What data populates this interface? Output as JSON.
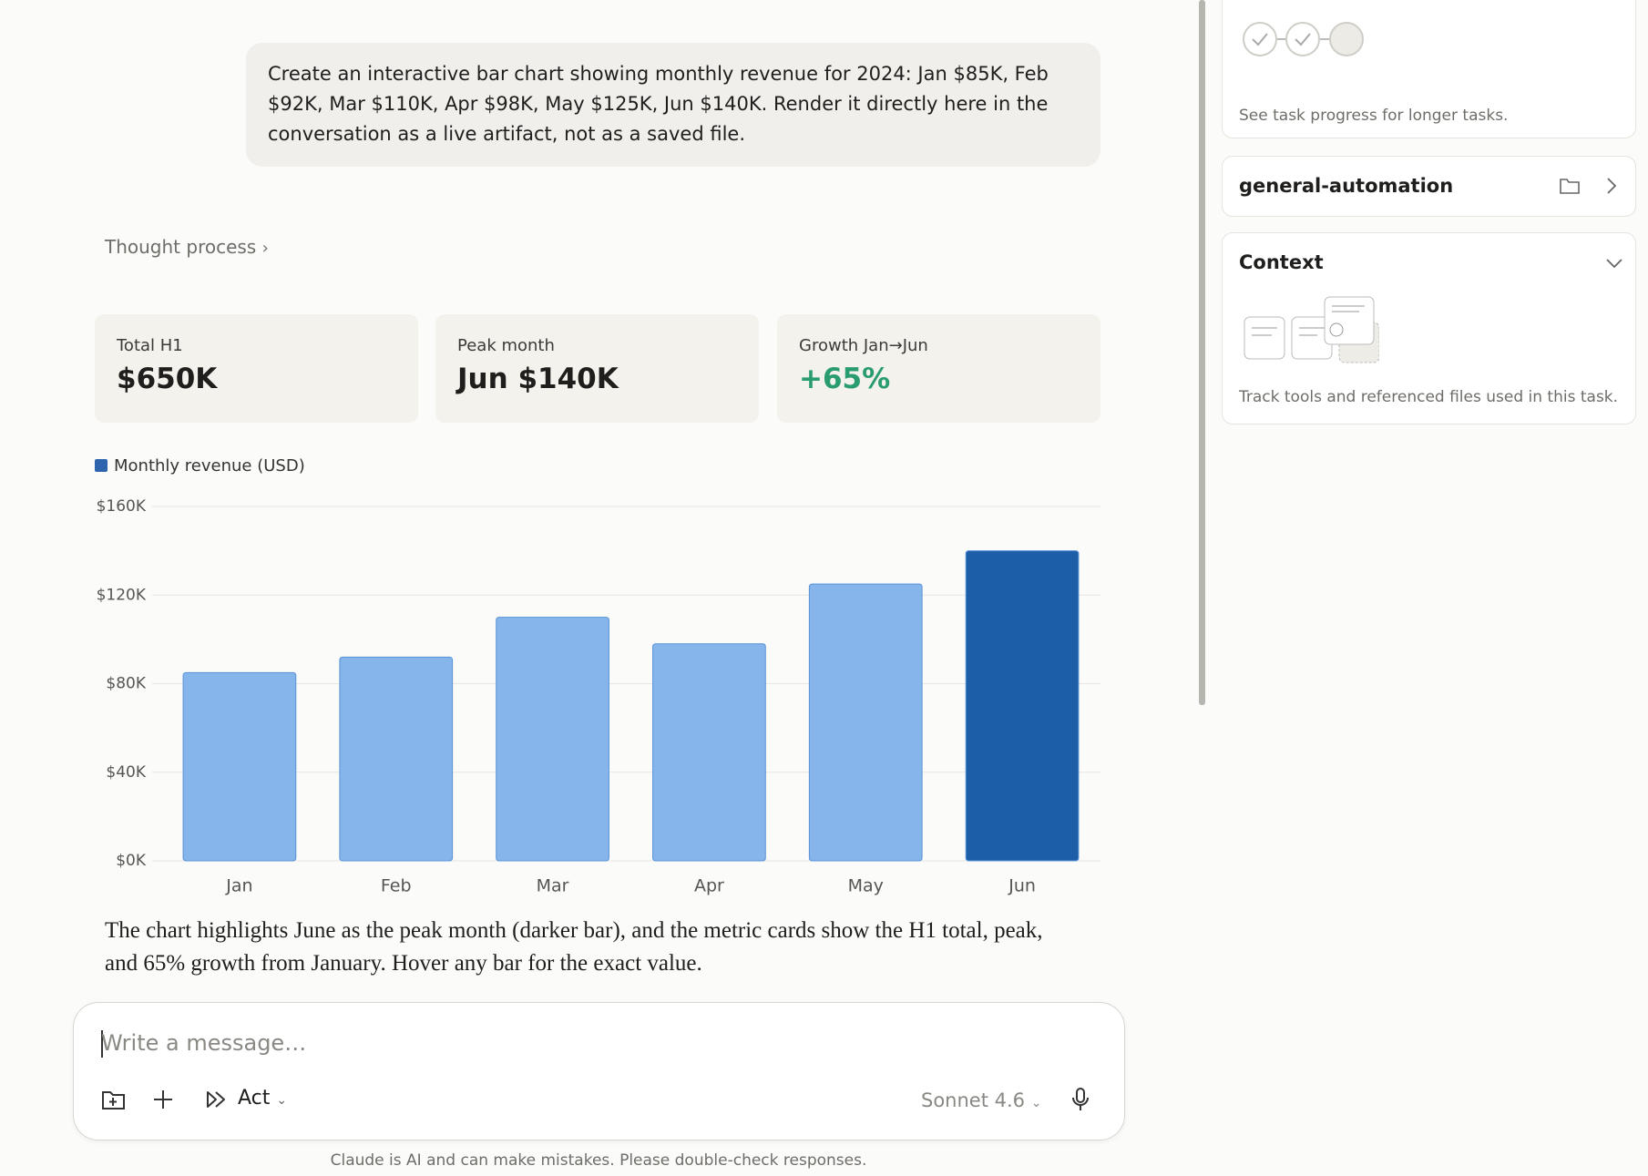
{
  "user_message": "Create an interactive bar chart showing monthly revenue for 2024: Jan $85K, Feb $92K, Mar $110K, Apr $98K, May $125K, Jun $140K. Render it directly here in the conversation as a live artifact, not as a saved file.",
  "thought_process": "Thought process",
  "metrics": [
    {
      "label": "Total H1",
      "value": "$650K"
    },
    {
      "label": "Peak month",
      "value": "Jun $140K"
    },
    {
      "label": "Growth Jan→Jun",
      "value": "+65%"
    }
  ],
  "chart_data": {
    "type": "bar",
    "categories": [
      "Jan",
      "Feb",
      "Mar",
      "Apr",
      "May",
      "Jun"
    ],
    "series": [
      {
        "name": "Monthly revenue (USD)",
        "color": "#2e64ad",
        "colors": [
          "#85b5ea",
          "#85b5ea",
          "#85b5ea",
          "#85b5ea",
          "#85b5ea",
          "#1c5fa8"
        ],
        "values": [
          85000,
          92000,
          110000,
          98000,
          125000,
          140000
        ]
      }
    ],
    "ylim": [
      0,
      160000
    ],
    "yticks": [
      {
        "value": 0,
        "label": "$0K"
      },
      {
        "value": 40000,
        "label": "$40K"
      },
      {
        "value": 80000,
        "label": "$80K"
      },
      {
        "value": 120000,
        "label": "$120K"
      },
      {
        "value": 160000,
        "label": "$160K"
      }
    ],
    "grid": true
  },
  "response": "The chart highlights June as the peak month (darker bar), and the metric cards show the H1 total, peak, and 65% growth from January. Hover any bar for the exact value.",
  "composer": {
    "placeholder": "Write a message…",
    "mode": "Act",
    "model": "Sonnet 4.6"
  },
  "disclaimer": "Claude is AI and can make mistakes. Please double-check responses.",
  "sidebar": {
    "progress_caption": "See task progress for longer tasks.",
    "project": "general-automation",
    "context_title": "Context",
    "context_caption": "Track tools and referenced files used in this task."
  }
}
